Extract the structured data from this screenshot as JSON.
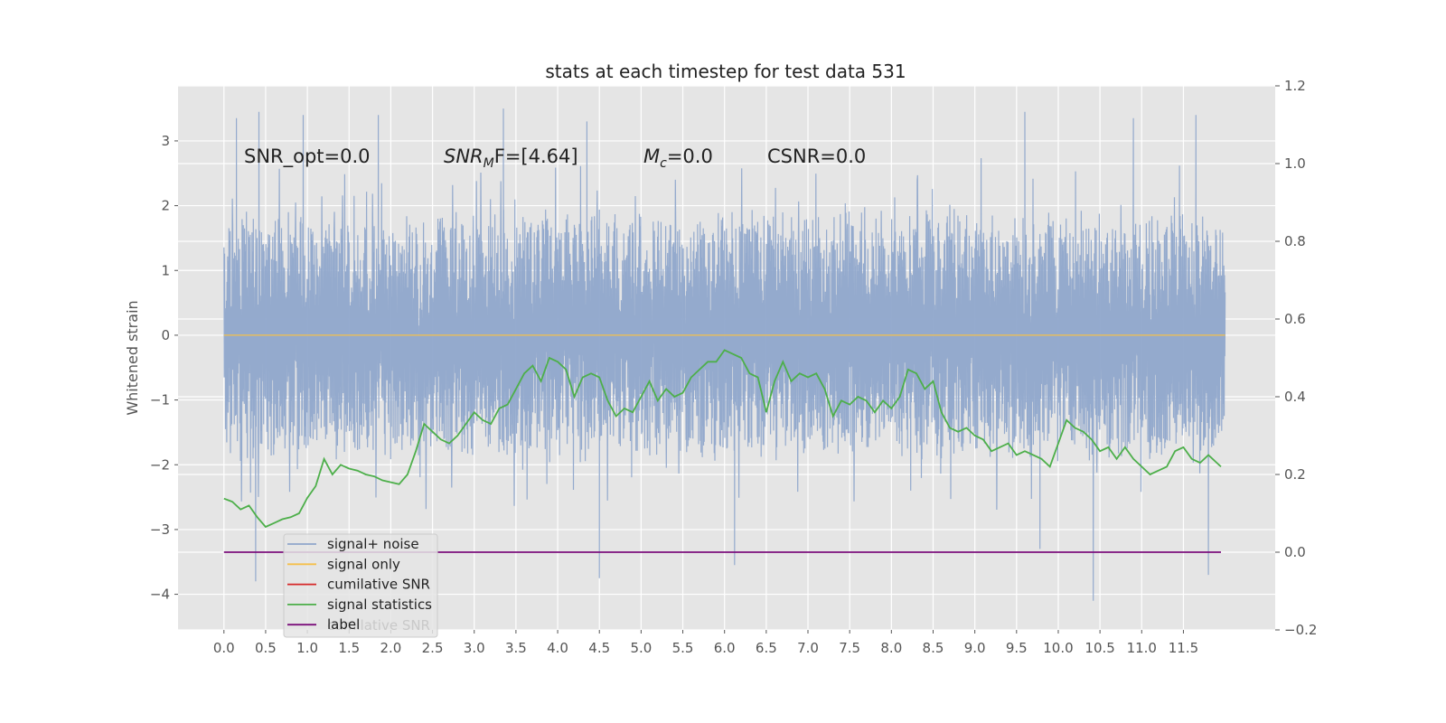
{
  "chart_data": {
    "type": "line",
    "title": "stats at each timestep for test data 531",
    "ylabel": "Whitened strain",
    "xlabel": "",
    "xlim": [
      -0.55,
      12.6
    ],
    "ylim": [
      -4.55,
      3.85
    ],
    "y2lim": [
      -0.2,
      1.2
    ],
    "grid": true,
    "background": "#e5e5e5",
    "x_ticks": [
      "0.0",
      "0.5",
      "1.0",
      "1.5",
      "2.0",
      "2.5",
      "3.0",
      "3.5",
      "4.0",
      "4.5",
      "5.0",
      "5.5",
      "6.0",
      "6.5",
      "7.0",
      "7.5",
      "8.0",
      "8.5",
      "9.0",
      "9.5",
      "10.0",
      "10.5",
      "11.0",
      "11.5"
    ],
    "y_ticks": [
      "3",
      "2",
      "1",
      "0",
      "−1",
      "−2",
      "−3",
      "−4"
    ],
    "y2_ticks": [
      "1.2",
      "1.0",
      "0.8",
      "0.6",
      "0.4",
      "0.2",
      "0.0",
      "−0.2"
    ],
    "annotations": {
      "snr_opt": "SNR_opt=0.0",
      "snr_mf_base": "SNR",
      "snr_mf_sub": "M",
      "snr_mf_rest": "F=[4.64]",
      "mc_base": "M",
      "mc_sub": "c",
      "mc_rest": "=0.0",
      "csnr": "CSNR=0.0"
    },
    "legend": {
      "placement": "lower-left",
      "entries": [
        {
          "label": "signal+ noise",
          "color": "#8fa6cb"
        },
        {
          "label": "signal only",
          "color": "#f5c04a"
        },
        {
          "label": "cumilative SNR",
          "color": "#d62728"
        },
        {
          "label": "signal statistics",
          "color": "#4daf4a"
        },
        {
          "label": "label",
          "color": "#7b0f7b"
        }
      ],
      "hidden_text": "cumilative SNR"
    },
    "series": [
      {
        "name": "signal+ noise",
        "axis": "left",
        "color": "#8fa6cb",
        "x_range": [
          0.0,
          12.0
        ],
        "typical_range": [
          -1.9,
          2.0
        ],
        "peaks": [
          {
            "x": 0.15,
            "y": 3.35
          },
          {
            "x": 0.42,
            "y": 3.45
          },
          {
            "x": 0.95,
            "y": 3.4
          },
          {
            "x": 1.85,
            "y": 3.4
          },
          {
            "x": 3.35,
            "y": 3.5
          },
          {
            "x": 4.35,
            "y": 3.3
          },
          {
            "x": 9.6,
            "y": 3.45
          },
          {
            "x": 10.9,
            "y": 3.35
          },
          {
            "x": 11.65,
            "y": 3.4
          }
        ],
        "troughs": [
          {
            "x": 0.38,
            "y": -3.8
          },
          {
            "x": 4.5,
            "y": -3.75
          },
          {
            "x": 6.12,
            "y": -3.55
          },
          {
            "x": 9.78,
            "y": -3.3
          },
          {
            "x": 10.42,
            "y": -4.1
          },
          {
            "x": 11.8,
            "y": -3.7
          }
        ]
      },
      {
        "name": "signal only",
        "axis": "left",
        "color": "#f5c04a",
        "x": [
          0.0,
          12.0
        ],
        "y": [
          0.0,
          0.0
        ]
      },
      {
        "name": "signal statistics",
        "axis": "right",
        "color": "#4daf4a",
        "x": [
          0.0,
          0.1,
          0.2,
          0.3,
          0.4,
          0.5,
          0.6,
          0.7,
          0.8,
          0.9,
          1.0,
          1.1,
          1.2,
          1.3,
          1.4,
          1.5,
          1.6,
          1.7,
          1.8,
          1.9,
          2.0,
          2.1,
          2.2,
          2.3,
          2.4,
          2.5,
          2.6,
          2.7,
          2.8,
          2.9,
          3.0,
          3.1,
          3.2,
          3.3,
          3.4,
          3.5,
          3.6,
          3.7,
          3.8,
          3.9,
          4.0,
          4.1,
          4.2,
          4.3,
          4.4,
          4.5,
          4.6,
          4.7,
          4.8,
          4.9,
          5.0,
          5.1,
          5.2,
          5.3,
          5.4,
          5.5,
          5.6,
          5.7,
          5.8,
          5.9,
          6.0,
          6.1,
          6.2,
          6.3,
          6.4,
          6.5,
          6.6,
          6.7,
          6.8,
          6.9,
          7.0,
          7.1,
          7.2,
          7.3,
          7.4,
          7.5,
          7.6,
          7.7,
          7.8,
          7.9,
          8.0,
          8.1,
          8.2,
          8.3,
          8.4,
          8.5,
          8.6,
          8.7,
          8.8,
          8.9,
          9.0,
          9.1,
          9.2,
          9.3,
          9.4,
          9.5,
          9.6,
          9.7,
          9.8,
          9.9,
          10.0,
          10.1,
          10.2,
          10.3,
          10.4,
          10.5,
          10.6,
          10.7,
          10.8,
          10.9,
          11.0,
          11.1,
          11.2,
          11.3,
          11.4,
          11.5,
          11.6,
          11.7,
          11.8,
          11.9,
          11.95
        ],
        "y": [
          0.138,
          0.13,
          0.11,
          0.12,
          0.09,
          0.065,
          0.075,
          0.085,
          0.09,
          0.1,
          0.14,
          0.17,
          0.24,
          0.2,
          0.225,
          0.215,
          0.21,
          0.2,
          0.195,
          0.185,
          0.18,
          0.175,
          0.2,
          0.26,
          0.33,
          0.31,
          0.29,
          0.28,
          0.3,
          0.33,
          0.36,
          0.34,
          0.33,
          0.37,
          0.38,
          0.42,
          0.46,
          0.48,
          0.44,
          0.5,
          0.49,
          0.47,
          0.4,
          0.45,
          0.46,
          0.45,
          0.39,
          0.35,
          0.37,
          0.36,
          0.4,
          0.44,
          0.39,
          0.42,
          0.4,
          0.41,
          0.45,
          0.47,
          0.49,
          0.49,
          0.52,
          0.51,
          0.5,
          0.46,
          0.45,
          0.36,
          0.44,
          0.49,
          0.44,
          0.46,
          0.45,
          0.46,
          0.42,
          0.35,
          0.39,
          0.38,
          0.4,
          0.39,
          0.36,
          0.39,
          0.37,
          0.4,
          0.47,
          0.46,
          0.42,
          0.44,
          0.36,
          0.32,
          0.31,
          0.32,
          0.3,
          0.29,
          0.26,
          0.27,
          0.28,
          0.25,
          0.26,
          0.25,
          0.24,
          0.22,
          0.28,
          0.34,
          0.32,
          0.31,
          0.29,
          0.26,
          0.27,
          0.24,
          0.27,
          0.24,
          0.22,
          0.2,
          0.21,
          0.22,
          0.26,
          0.27,
          0.24,
          0.23,
          0.25,
          0.23,
          0.22
        ]
      },
      {
        "name": "label",
        "axis": "right",
        "color": "#7b0f7b",
        "x": [
          0.0,
          11.95
        ],
        "y": [
          0.0,
          0.0
        ]
      }
    ]
  }
}
